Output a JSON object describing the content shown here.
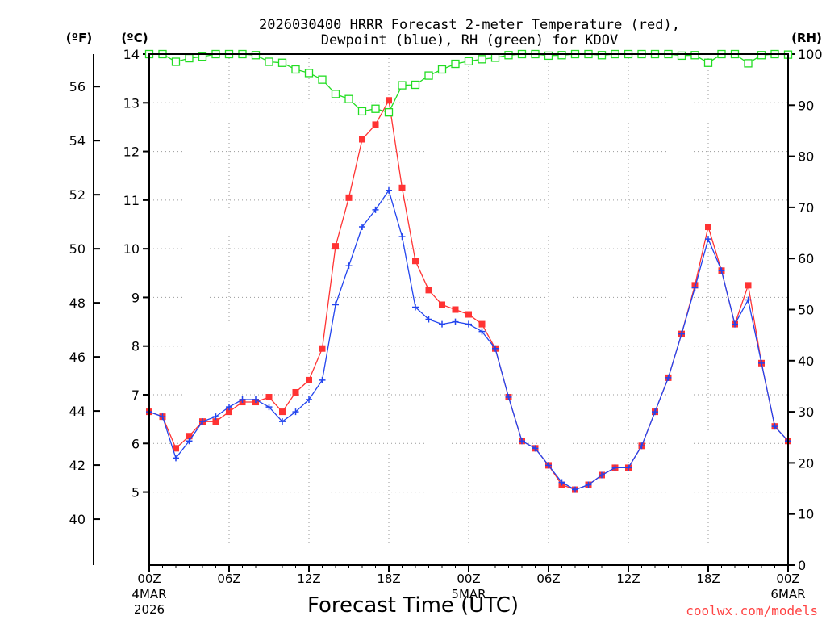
{
  "chart_data": {
    "type": "line",
    "title_line1": "2026030400 HRRR Forecast 2-meter Temperature (red),",
    "title_line2": "Dewpoint (blue), RH (green) for KDOV",
    "xlabel": "Forecast Time (UTC)",
    "watermark": "coolwx.com/models",
    "unit_labels": {
      "fahrenheit": "(ºF)",
      "celsius": "(ºC)",
      "rh": "(RH)"
    },
    "x_range_hours": [
      0,
      48
    ],
    "celsius_range": [
      3.5,
      14
    ],
    "rh_range": [
      0,
      100
    ],
    "x_ticks": [
      {
        "hour": 0,
        "label": "00Z",
        "sub1": "4MAR",
        "sub2": "2026"
      },
      {
        "hour": 6,
        "label": "06Z",
        "sub1": "",
        "sub2": ""
      },
      {
        "hour": 12,
        "label": "12Z",
        "sub1": "",
        "sub2": ""
      },
      {
        "hour": 18,
        "label": "18Z",
        "sub1": "",
        "sub2": ""
      },
      {
        "hour": 24,
        "label": "00Z",
        "sub1": "5MAR",
        "sub2": ""
      },
      {
        "hour": 30,
        "label": "06Z",
        "sub1": "",
        "sub2": ""
      },
      {
        "hour": 36,
        "label": "12Z",
        "sub1": "",
        "sub2": ""
      },
      {
        "hour": 42,
        "label": "18Z",
        "sub1": "",
        "sub2": ""
      },
      {
        "hour": 48,
        "label": "00Z",
        "sub1": "6MAR",
        "sub2": ""
      }
    ],
    "celsius_ticks": [
      5,
      6,
      7,
      8,
      9,
      10,
      11,
      12,
      13,
      14
    ],
    "fahrenheit_ticks": [
      40,
      42,
      44,
      46,
      48,
      50,
      52,
      54,
      56
    ],
    "rh_ticks": [
      0,
      10,
      20,
      30,
      40,
      50,
      60,
      70,
      80,
      90,
      100
    ],
    "hours": [
      0,
      1,
      2,
      3,
      4,
      5,
      6,
      7,
      8,
      9,
      10,
      11,
      12,
      13,
      14,
      15,
      16,
      17,
      18,
      19,
      20,
      21,
      22,
      23,
      24,
      25,
      26,
      27,
      28,
      29,
      30,
      31,
      32,
      33,
      34,
      35,
      36,
      37,
      38,
      39,
      40,
      41,
      42,
      43,
      44,
      45,
      46,
      47,
      48
    ],
    "series": [
      {
        "name": "Temperature",
        "unit": "C",
        "color": "#ff3333",
        "marker": "filled-square",
        "values": [
          6.65,
          6.55,
          5.9,
          6.15,
          6.45,
          6.45,
          6.65,
          6.85,
          6.85,
          6.95,
          6.65,
          7.05,
          7.3,
          7.95,
          10.05,
          11.05,
          12.25,
          12.55,
          13.05,
          11.25,
          9.75,
          9.15,
          8.85,
          8.75,
          8.65,
          8.45,
          7.95,
          6.95,
          6.05,
          5.9,
          5.55,
          5.15,
          5.05,
          5.15,
          5.35,
          5.5,
          5.5,
          5.95,
          6.65,
          7.35,
          8.25,
          9.25,
          10.45,
          9.55,
          8.45,
          9.25,
          7.65,
          6.35,
          6.05
        ]
      },
      {
        "name": "Dewpoint",
        "unit": "C",
        "color": "#2244ee",
        "marker": "plus",
        "values": [
          6.65,
          6.55,
          5.7,
          6.05,
          6.45,
          6.55,
          6.75,
          6.9,
          6.9,
          6.75,
          6.45,
          6.65,
          6.9,
          7.3,
          8.85,
          9.65,
          10.45,
          10.8,
          11.2,
          10.25,
          8.8,
          8.55,
          8.45,
          8.5,
          8.45,
          8.3,
          7.95,
          6.95,
          6.05,
          5.9,
          5.55,
          5.2,
          5.05,
          5.15,
          5.35,
          5.5,
          5.5,
          5.95,
          6.65,
          7.35,
          8.25,
          9.2,
          10.2,
          9.55,
          8.45,
          8.95,
          7.65,
          6.35,
          6.05
        ]
      },
      {
        "name": "RH",
        "unit": "%",
        "color": "#22dd22",
        "marker": "open-square",
        "values": [
          100,
          100,
          98.5,
          99.2,
          99.5,
          100,
          100,
          100,
          99.8,
          98.5,
          98.3,
          97,
          96.3,
          95,
          92.2,
          91.2,
          88.8,
          89.3,
          88.6,
          93.9,
          94,
          95.8,
          97,
          98.1,
          98.6,
          99,
          99.3,
          99.8,
          100,
          100,
          99.7,
          99.8,
          100,
          100,
          99.8,
          100,
          100,
          100,
          100,
          100,
          99.7,
          99.8,
          98.3,
          100,
          100,
          98.2,
          99.8,
          100,
          99.9
        ]
      }
    ]
  }
}
